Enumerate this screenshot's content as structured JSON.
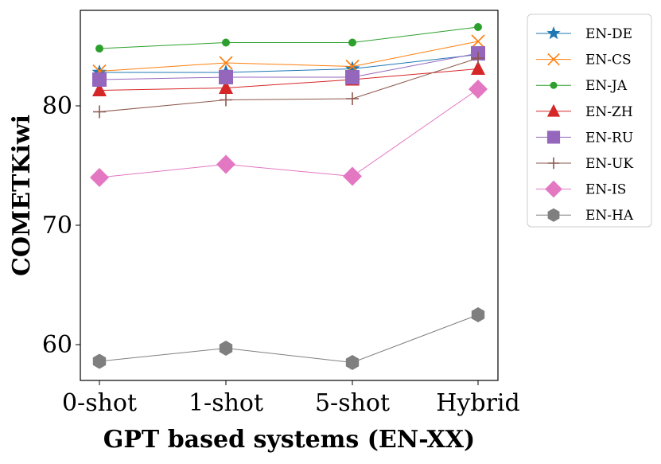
{
  "chart_data": {
    "type": "line",
    "xlabel": "GPT based systems (EN-XX)",
    "ylabel": "COMETKiwi",
    "categories": [
      "0-shot",
      "1-shot",
      "5-shot",
      "Hybrid"
    ],
    "ylim": [
      57.0,
      88.0
    ],
    "yticks": [
      60,
      70,
      80
    ],
    "legend_position": "outside-upper-right",
    "series": [
      {
        "name": "EN-DE",
        "marker": "star",
        "color": "#1f77b4",
        "values": [
          82.8,
          82.8,
          83.1,
          84.3
        ]
      },
      {
        "name": "EN-CS",
        "marker": "x",
        "color": "#ff7f0e",
        "values": [
          82.9,
          83.6,
          83.3,
          85.4
        ]
      },
      {
        "name": "EN-JA",
        "marker": "dot",
        "color": "#2ca02c",
        "values": [
          84.8,
          85.3,
          85.3,
          86.6
        ]
      },
      {
        "name": "EN-ZH",
        "marker": "triangle",
        "color": "#d62728",
        "values": [
          81.3,
          81.5,
          82.2,
          83.1
        ]
      },
      {
        "name": "EN-RU",
        "marker": "square",
        "color": "#9467bd",
        "values": [
          82.2,
          82.4,
          82.4,
          84.4
        ]
      },
      {
        "name": "EN-UK",
        "marker": "plus",
        "color": "#8c564b",
        "values": [
          79.5,
          80.5,
          80.6,
          84.0
        ]
      },
      {
        "name": "EN-IS",
        "marker": "diamond",
        "color": "#e377c2",
        "values": [
          74.0,
          75.1,
          74.1,
          81.4
        ]
      },
      {
        "name": "EN-HA",
        "marker": "hexagon",
        "color": "#7f7f7f",
        "values": [
          58.6,
          59.7,
          58.5,
          62.5
        ]
      }
    ]
  }
}
